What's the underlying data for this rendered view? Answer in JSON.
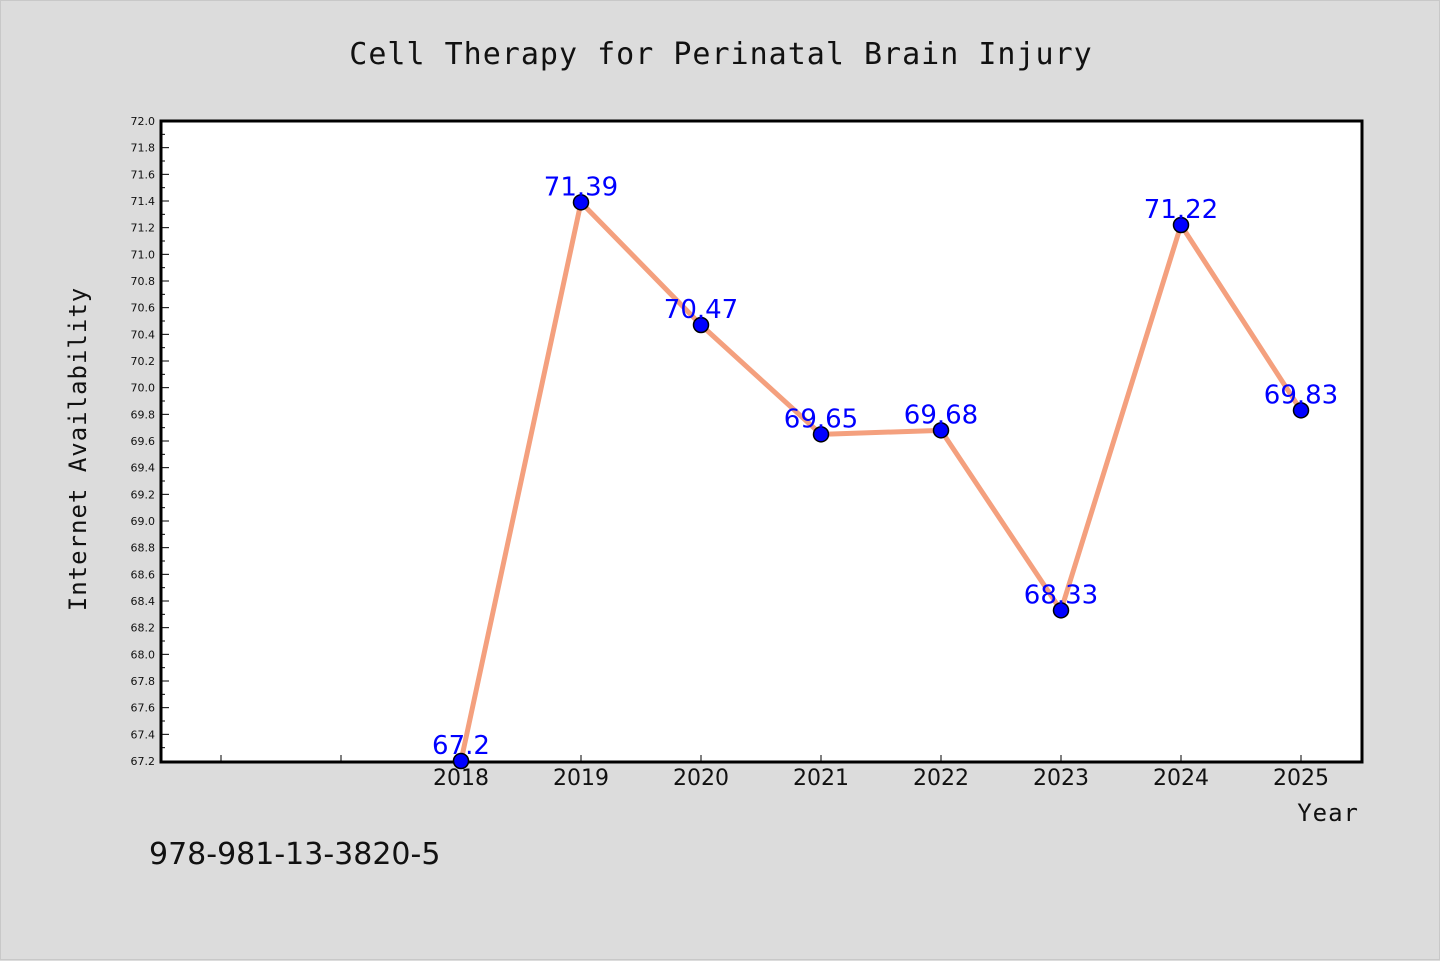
{
  "chart_data": {
    "type": "line",
    "title": "Cell Therapy for Perinatal Brain Injury",
    "xlabel": "Year",
    "ylabel": "Internet Availability",
    "categories": [
      "2018",
      "2019",
      "2020",
      "2021",
      "2022",
      "2023",
      "2024",
      "2025"
    ],
    "series": [
      {
        "values": [
          67.2,
          71.39,
          70.47,
          69.65,
          69.68,
          68.33,
          71.22,
          69.83
        ]
      }
    ],
    "data_labels": [
      "67.2",
      "71.39",
      "70.47",
      "69.65",
      "69.68",
      "68.33",
      "71.22",
      "69.83"
    ],
    "ylim": [
      67.2,
      72.0
    ],
    "ytick_labels": [
      "67.2",
      "67.4",
      "67.6",
      "67.8",
      "68.0",
      "68.2",
      "68.4",
      "68.6",
      "68.8",
      "69.0",
      "69.2",
      "69.4",
      "69.6",
      "69.8",
      "70.0",
      "70.2",
      "70.4",
      "70.6",
      "70.8",
      "71.0",
      "71.2",
      "71.4",
      "71.6",
      "71.8",
      "72.0"
    ],
    "grid": false,
    "legend": "none",
    "line_color": "#f4a07e",
    "marker_color": "#0000ff",
    "label_color": "#0000ff",
    "background_color": "#dcdcdc",
    "plot_background": "#ffffff"
  },
  "annotation": "978-981-13-3820-5"
}
